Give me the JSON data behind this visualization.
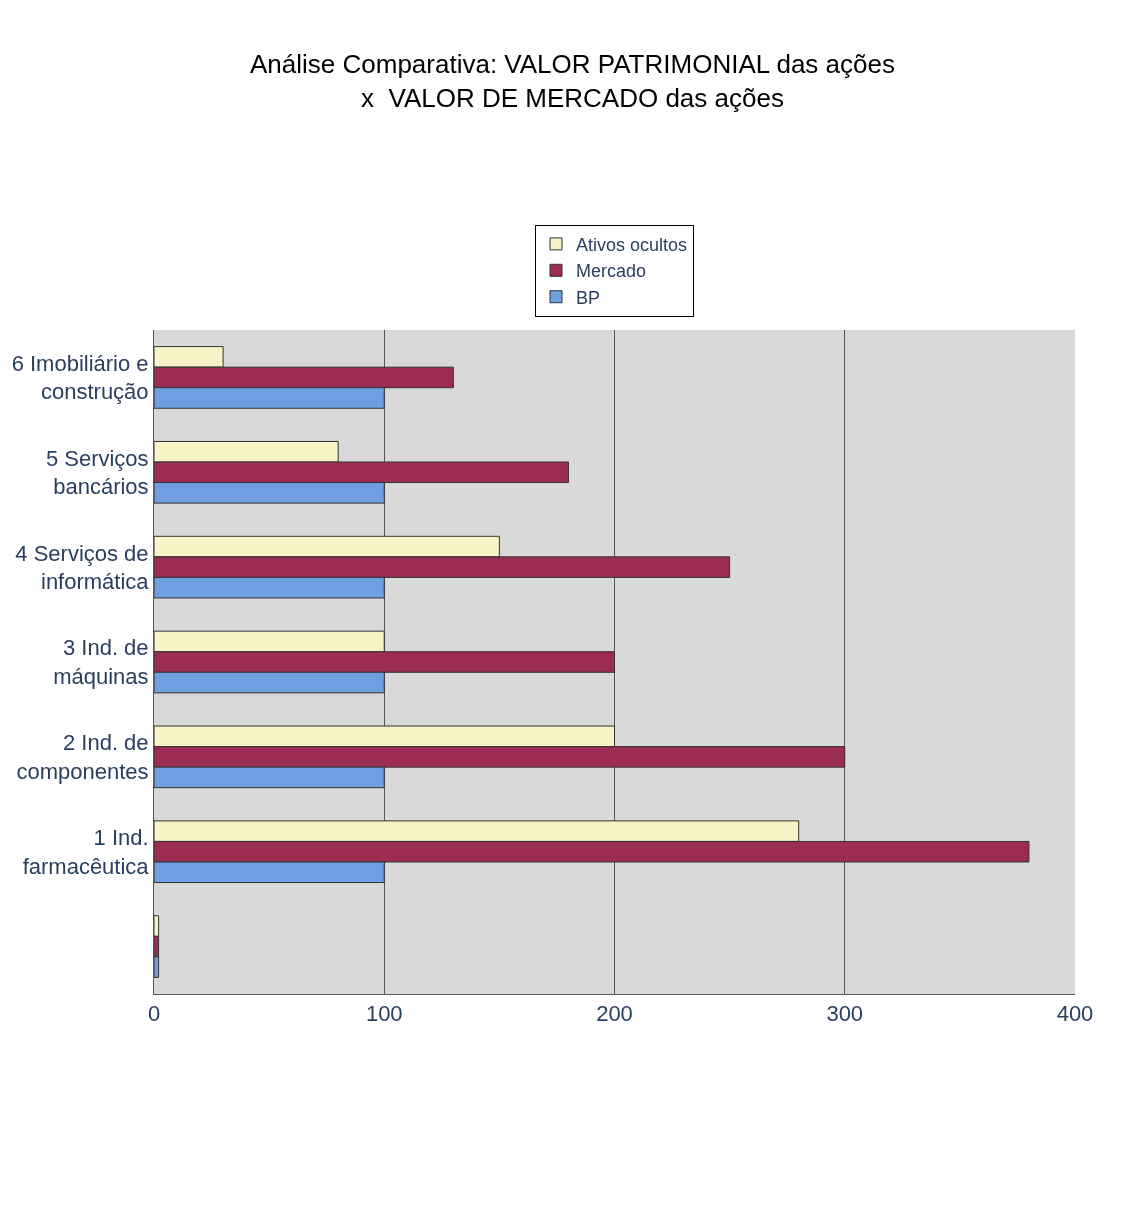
{
  "chart_data": {
    "type": "bar",
    "orientation": "horizontal",
    "title": "Análise Comparativa: VALOR PATRIMONIAL das ações  x  VALOR DE MERCADO das ações",
    "categories": [
      "6 Imobiliário e construção",
      "5 Serviços bancários",
      "4 Serviços de informática",
      "3 Ind. de máquinas",
      "2 Ind. de componentes",
      "1 Ind. farmacêutica",
      null
    ],
    "series": [
      {
        "name": "Ativos ocultos",
        "color": "#f7f3c6",
        "values": [
          30,
          80,
          150,
          100,
          200,
          280,
          2
        ]
      },
      {
        "name": "Mercado",
        "color": "#9b2d52",
        "values": [
          130,
          180,
          250,
          200,
          300,
          380,
          2
        ]
      },
      {
        "name": "BP",
        "color": "#6e9fe0",
        "values": [
          100,
          100,
          100,
          100,
          100,
          100,
          2
        ]
      }
    ],
    "xlim": [
      0,
      400
    ],
    "xticks": [
      0,
      100,
      200,
      300,
      400
    ],
    "grid": "x",
    "legend": "top"
  }
}
